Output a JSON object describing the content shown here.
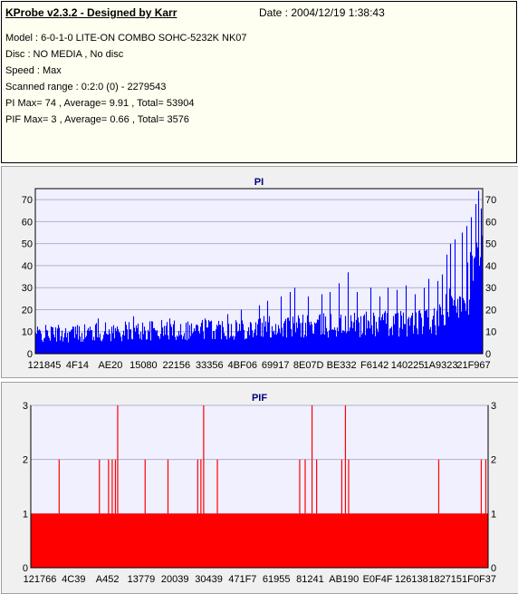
{
  "header": {
    "title": "KProbe v2.3.2 - Designed by Karr",
    "date": "Date : 2004/12/19 1:38:43",
    "lines": [
      "Model : 6-0-1-0 LITE-ON COMBO SOHC-5232K NK07",
      "Disc : NO MEDIA , No disc",
      "Speed : Max",
      "Scanned range : 0:2:0 (0) - 2279543",
      "PI Max= 74 , Average= 9.91 , Total= 53904",
      "PIF Max= 3 , Average= 0.66 , Total= 3576"
    ]
  },
  "chart_data": [
    {
      "type": "bar",
      "title": "PI",
      "color": "#0000ff",
      "ylim": [
        0,
        75
      ],
      "yticks": [
        0,
        10,
        20,
        30,
        40,
        50,
        60,
        70
      ],
      "xticks": [
        "121845",
        "4F14",
        "AE20",
        "15080",
        "22156",
        "33356",
        "4BF06",
        "69917",
        "8E07D",
        "BE332",
        "F6142",
        "140225",
        "1A9323",
        "21F967"
      ],
      "baseline": 9.91,
      "max": 74,
      "spikes": [
        [
          0.14,
          16
        ],
        [
          0.22,
          17
        ],
        [
          0.3,
          16
        ],
        [
          0.38,
          16
        ],
        [
          0.43,
          18
        ],
        [
          0.46,
          20
        ],
        [
          0.5,
          22
        ],
        [
          0.52,
          24
        ],
        [
          0.55,
          26
        ],
        [
          0.57,
          28
        ],
        [
          0.58,
          30
        ],
        [
          0.61,
          26
        ],
        [
          0.64,
          27
        ],
        [
          0.66,
          28
        ],
        [
          0.68,
          32
        ],
        [
          0.7,
          37
        ],
        [
          0.72,
          28
        ],
        [
          0.75,
          30
        ],
        [
          0.77,
          26
        ],
        [
          0.79,
          30
        ],
        [
          0.81,
          29
        ],
        [
          0.83,
          31
        ],
        [
          0.85,
          27
        ],
        [
          0.87,
          30
        ],
        [
          0.88,
          34
        ],
        [
          0.9,
          33
        ],
        [
          0.91,
          36
        ],
        [
          0.92,
          45
        ],
        [
          0.93,
          50
        ],
        [
          0.94,
          52
        ],
        [
          0.955,
          55
        ],
        [
          0.965,
          58
        ],
        [
          0.975,
          62
        ],
        [
          0.985,
          68
        ],
        [
          0.992,
          74
        ],
        [
          0.998,
          66
        ]
      ]
    },
    {
      "type": "bar",
      "title": "PIF",
      "color": "#ff0000",
      "ylim": [
        0,
        3
      ],
      "yticks": [
        0,
        1,
        2,
        3
      ],
      "xticks": [
        "121766",
        "4C39",
        "A452",
        "13779",
        "20039",
        "30439",
        "471F7",
        "61955",
        "81241",
        "AB190",
        "E0F4F",
        "126138",
        "182715",
        "1F0F37"
      ],
      "baseline": 1,
      "spikes": [
        [
          0.062,
          2
        ],
        [
          0.15,
          2
        ],
        [
          0.17,
          2
        ],
        [
          0.178,
          2
        ],
        [
          0.185,
          2
        ],
        [
          0.19,
          3
        ],
        [
          0.25,
          2
        ],
        [
          0.3,
          2
        ],
        [
          0.365,
          2
        ],
        [
          0.372,
          2
        ],
        [
          0.378,
          3
        ],
        [
          0.408,
          2
        ],
        [
          0.588,
          2
        ],
        [
          0.6,
          2
        ],
        [
          0.615,
          3
        ],
        [
          0.625,
          2
        ],
        [
          0.68,
          2
        ],
        [
          0.688,
          3
        ],
        [
          0.695,
          2
        ],
        [
          0.892,
          2
        ],
        [
          0.985,
          2
        ],
        [
          0.995,
          2
        ]
      ]
    }
  ]
}
